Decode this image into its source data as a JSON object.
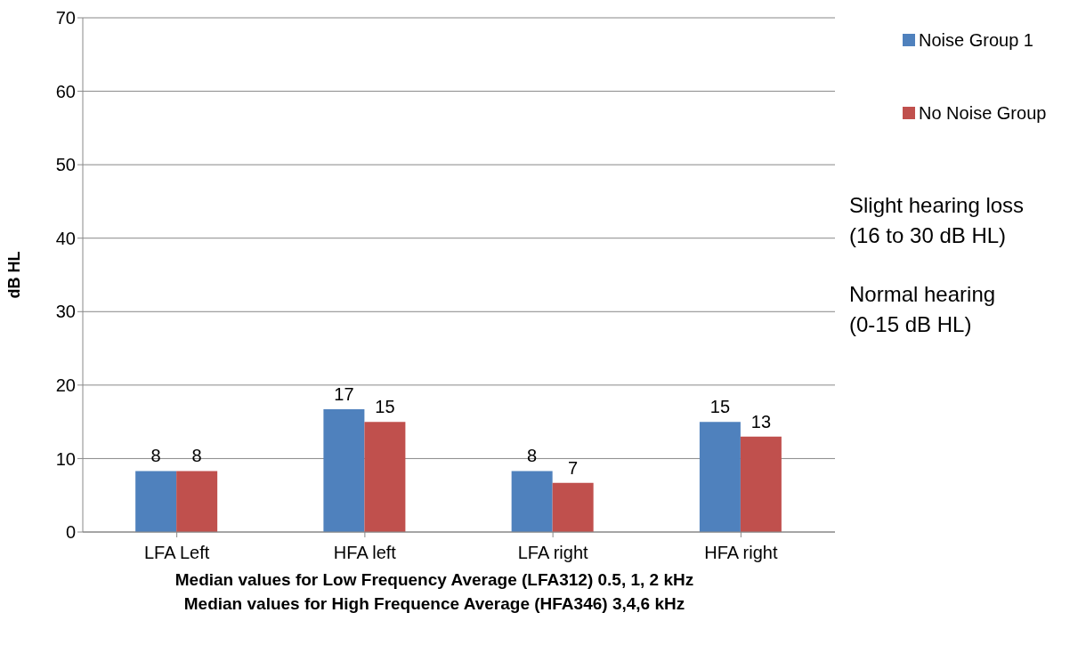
{
  "chart_data": {
    "type": "bar",
    "categories": [
      "LFA Left",
      "HFA left",
      "LFA right",
      "HFA right"
    ],
    "series": [
      {
        "name": "Noise Group 1",
        "color": "#4f81bd",
        "values": [
          8.3,
          16.7,
          8.3,
          15
        ],
        "value_labels": [
          "8",
          "17",
          "8",
          "15"
        ]
      },
      {
        "name": "No Noise Group",
        "color": "#c0504d",
        "values": [
          8.3,
          15,
          6.7,
          13
        ],
        "value_labels": [
          "8",
          "15",
          "7",
          "13"
        ]
      }
    ],
    "ylabel": "dB HL",
    "xlabel": "Median values for Low Frequency Average (LFA312) 0.5, 1, 2 kHz\nMedian values for High Frequence Average (HFA346) 3,4,6 kHz",
    "ylim": [
      0,
      70
    ],
    "yticks": [
      0,
      10,
      20,
      30,
      40,
      50,
      60,
      70
    ],
    "grid": "y",
    "legend": "top right",
    "annotations": [
      "Slight hearing loss\n(16 to 30 dB HL)",
      "Normal hearing\n(0-15 dB HL)"
    ]
  }
}
